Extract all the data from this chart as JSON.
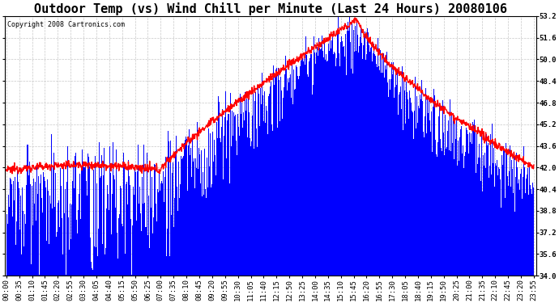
{
  "title": "Outdoor Temp (vs) Wind Chill per Minute (Last 24 Hours) 20080106",
  "copyright": "Copyright 2008 Cartronics.com",
  "ylim": [
    34.0,
    53.2
  ],
  "yticks": [
    34.0,
    35.6,
    37.2,
    38.8,
    40.4,
    42.0,
    43.6,
    45.2,
    46.8,
    48.4,
    50.0,
    51.6,
    53.2
  ],
  "xtick_labels": [
    "00:00",
    "00:35",
    "01:10",
    "01:45",
    "02:20",
    "02:55",
    "03:30",
    "04:05",
    "04:40",
    "05:15",
    "05:50",
    "06:25",
    "07:00",
    "07:35",
    "08:10",
    "08:45",
    "09:20",
    "09:55",
    "10:30",
    "11:05",
    "11:40",
    "12:15",
    "12:50",
    "13:25",
    "14:00",
    "14:35",
    "15:10",
    "15:45",
    "16:20",
    "16:55",
    "17:30",
    "18:05",
    "18:40",
    "19:15",
    "19:50",
    "20:25",
    "21:00",
    "21:35",
    "22:10",
    "22:45",
    "23:20",
    "23:55"
  ],
  "background_color": "#ffffff",
  "plot_bg_color": "#ffffff",
  "grid_color": "#c8c8c8",
  "bar_color": "#0000ff",
  "line_color": "#ff0000",
  "title_fontsize": 11,
  "tick_fontsize": 6.5,
  "copyright_fontsize": 6.0,
  "n_minutes": 1440,
  "figwidth": 6.9,
  "figheight": 3.75,
  "dpi": 100
}
